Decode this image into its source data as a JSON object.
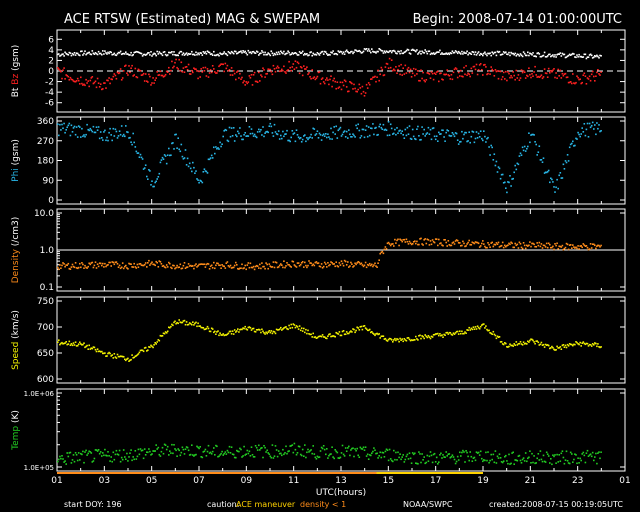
{
  "header": {
    "title": "ACE RTSW (Estimated) MAG & SWEPAM",
    "begin": "Begin: 2008-07-14 01:00:00UTC"
  },
  "footer": {
    "start_doy": "start DOY: 196",
    "caution_label": "caution:",
    "caution_maneuver": "ACE maneuver",
    "caution_density": "density < 1",
    "source": "NOAA/SWPC",
    "created": "created:2008-07-15 00:19:05UTC"
  },
  "colors": {
    "bt": "#ffffff",
    "bz": "#ff2020",
    "phi": "#29b6e6",
    "density": "#ff8c1a",
    "speed": "#f2f200",
    "temp": "#22cc22",
    "axis": "#ffffff",
    "maneuver": "#ffd200"
  },
  "chart_data": [
    {
      "type": "scatter",
      "panel": "mag",
      "ylabel_parts": [
        {
          "text": "Bt",
          "color": "#ffffff"
        },
        {
          "text": "Bz",
          "color": "#ff2020"
        },
        {
          "text": "(gsm)",
          "color": "#ffffff"
        }
      ],
      "ylim": [
        -7,
        7
      ],
      "yticks": [
        "6",
        "4",
        "2",
        "0",
        "-2",
        "-4",
        "-6"
      ],
      "reference_lines": [
        0
      ],
      "series": [
        {
          "key": "Bt",
          "color": "#ffffff",
          "x": [
            1,
            2,
            3,
            4,
            5,
            6,
            7,
            8,
            9,
            10,
            11,
            12,
            13,
            14,
            15,
            16,
            17,
            18,
            19,
            20,
            21,
            22,
            23,
            24
          ],
          "y": [
            3.3,
            3.5,
            3.6,
            3.4,
            3.4,
            3.5,
            3.6,
            3.4,
            3.6,
            3.5,
            3.6,
            3.4,
            3.6,
            4.0,
            3.9,
            3.8,
            3.7,
            3.6,
            3.5,
            3.4,
            3.3,
            3.2,
            3.0,
            2.8
          ]
        },
        {
          "key": "Bz",
          "color": "#ff2020",
          "x": [
            1,
            2,
            3,
            4,
            5,
            6,
            7,
            8,
            9,
            10,
            11,
            12,
            13,
            14,
            15,
            16,
            17,
            18,
            19,
            20,
            21,
            22,
            23,
            24
          ],
          "y": [
            0.0,
            -1.5,
            -2.5,
            0.5,
            -1.5,
            1.5,
            -0.5,
            1.0,
            -2.0,
            0.5,
            1.0,
            -1.0,
            -2.5,
            -3.5,
            1.5,
            -0.5,
            -1.0,
            0.0,
            0.5,
            -1.0,
            0.0,
            -0.5,
            -1.5,
            -0.5
          ]
        }
      ]
    },
    {
      "type": "scatter",
      "panel": "phi",
      "ylabel_parts": [
        {
          "text": "Phi",
          "color": "#29b6e6"
        },
        {
          "text": "(gsm)",
          "color": "#ffffff"
        }
      ],
      "ylim": [
        0,
        360
      ],
      "yticks": [
        "360",
        "270",
        "180",
        "90",
        "0"
      ],
      "series": [
        {
          "key": "Phi",
          "color": "#29b6e6",
          "x": [
            1,
            2,
            3,
            4,
            5,
            6,
            7,
            8,
            9,
            10,
            11,
            12,
            13,
            14,
            15,
            16,
            17,
            18,
            19,
            20,
            21,
            22,
            23,
            24
          ],
          "y": [
            330,
            320,
            300,
            320,
            80,
            280,
            90,
            300,
            310,
            320,
            290,
            300,
            310,
            320,
            330,
            310,
            300,
            290,
            300,
            60,
            310,
            40,
            320,
            330
          ]
        }
      ]
    },
    {
      "type": "scatter",
      "panel": "density",
      "ylabel_parts": [
        {
          "text": "Density",
          "color": "#ff8c1a"
        },
        {
          "text": "(/cm3)",
          "color": "#ffffff"
        }
      ],
      "yscale": "log",
      "ylim": [
        0.1,
        10
      ],
      "yticks": [
        "10.0",
        "1.0",
        "0.1"
      ],
      "reference_lines": [
        1.0
      ],
      "series": [
        {
          "key": "Density",
          "color": "#ff8c1a",
          "x": [
            1,
            2,
            3,
            4,
            5,
            6,
            7,
            8,
            9,
            10,
            11,
            12,
            13,
            14,
            14.5,
            15,
            16,
            17,
            18,
            19,
            20,
            21,
            22,
            23,
            24
          ],
          "y": [
            0.38,
            0.4,
            0.42,
            0.4,
            0.45,
            0.4,
            0.38,
            0.42,
            0.38,
            0.4,
            0.45,
            0.42,
            0.45,
            0.4,
            0.4,
            1.6,
            1.8,
            1.7,
            1.6,
            1.5,
            1.4,
            1.4,
            1.3,
            1.3,
            1.3
          ]
        }
      ]
    },
    {
      "type": "scatter",
      "panel": "speed",
      "ylabel_parts": [
        {
          "text": "Speed",
          "color": "#f2f200"
        },
        {
          "text": "(km/s)",
          "color": "#ffffff"
        }
      ],
      "ylim": [
        600,
        750
      ],
      "yticks": [
        "750",
        "700",
        "650",
        "600"
      ],
      "series": [
        {
          "key": "Speed",
          "color": "#f2f200",
          "x": [
            1,
            2,
            3,
            4,
            5,
            6,
            7,
            8,
            9,
            10,
            11,
            12,
            13,
            14,
            15,
            16,
            17,
            18,
            19,
            20,
            21,
            22,
            23,
            24
          ],
          "y": [
            672,
            668,
            650,
            640,
            665,
            712,
            705,
            685,
            700,
            690,
            705,
            680,
            690,
            700,
            675,
            680,
            685,
            690,
            705,
            665,
            675,
            660,
            670,
            665
          ]
        }
      ]
    },
    {
      "type": "scatter",
      "panel": "temp",
      "ylabel_parts": [
        {
          "text": "Temp",
          "color": "#22cc22"
        },
        {
          "text": "(K)",
          "color": "#ffffff"
        }
      ],
      "yscale": "log",
      "ylim": [
        100000,
        1000000
      ],
      "yticks": [
        "1.0E+06",
        "1.0E+05"
      ],
      "xlabel": "UTC(hours)",
      "xticks": [
        "01",
        "03",
        "05",
        "07",
        "09",
        "11",
        "13",
        "15",
        "17",
        "19",
        "21",
        "23",
        "01"
      ],
      "series": [
        {
          "key": "Temp",
          "color": "#22cc22",
          "x": [
            1,
            2,
            3,
            4,
            5,
            6,
            7,
            8,
            9,
            10,
            11,
            12,
            13,
            14,
            15,
            16,
            17,
            18,
            19,
            20,
            21,
            22,
            23,
            24
          ],
          "y": [
            130000,
            140000,
            145000,
            150000,
            165000,
            175000,
            170000,
            160000,
            170000,
            165000,
            175000,
            160000,
            165000,
            155000,
            150000,
            140000,
            135000,
            140000,
            145000,
            130000,
            140000,
            135000,
            140000,
            140000
          ]
        }
      ]
    }
  ]
}
